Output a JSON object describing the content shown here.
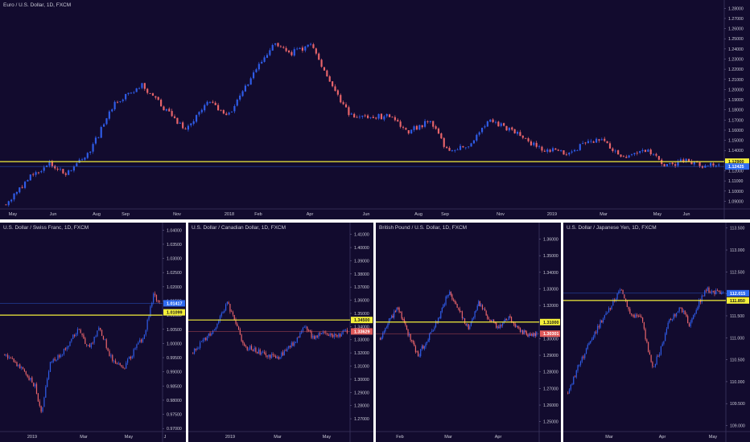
{
  "chart_data": [
    {
      "type": "candlestick",
      "title": "Euro / U.S. Dollar, 1D, FXCM",
      "xlabel": "",
      "ylabel": "",
      "ylim": [
        1.084,
        1.285
      ],
      "y_ticks": [
        "1.09000",
        "1.10000",
        "1.11000",
        "1.12000",
        "1.13000",
        "1.14000",
        "1.15000",
        "1.16000",
        "1.17000",
        "1.18000",
        "1.19000",
        "1.20000",
        "1.21000",
        "1.22000",
        "1.23000",
        "1.24000",
        "1.25000",
        "1.26000",
        "1.27000",
        "1.28000"
      ],
      "x_ticks": [
        "May",
        "Jun",
        "Aug",
        "Sep",
        "Nov",
        "2018",
        "Feb",
        "Apr",
        "Jun",
        "Aug",
        "Sep",
        "Nov",
        "2019",
        "Mar",
        "May",
        "Jun"
      ],
      "price_path": [
        [
          0,
          1.087
        ],
        [
          8,
          1.112
        ],
        [
          16,
          1.128
        ],
        [
          22,
          1.117
        ],
        [
          30,
          1.135
        ],
        [
          40,
          1.186
        ],
        [
          50,
          1.205
        ],
        [
          58,
          1.182
        ],
        [
          66,
          1.16
        ],
        [
          74,
          1.188
        ],
        [
          82,
          1.175
        ],
        [
          90,
          1.21
        ],
        [
          98,
          1.245
        ],
        [
          104,
          1.235
        ],
        [
          112,
          1.244
        ],
        [
          118,
          1.215
        ],
        [
          126,
          1.175
        ],
        [
          132,
          1.172
        ],
        [
          140,
          1.174
        ],
        [
          148,
          1.159
        ],
        [
          156,
          1.169
        ],
        [
          162,
          1.14
        ],
        [
          170,
          1.144
        ],
        [
          178,
          1.17
        ],
        [
          188,
          1.156
        ],
        [
          196,
          1.142
        ],
        [
          206,
          1.138
        ],
        [
          218,
          1.152
        ],
        [
          226,
          1.133
        ],
        [
          236,
          1.14
        ],
        [
          242,
          1.125
        ],
        [
          250,
          1.13
        ],
        [
          256,
          1.124
        ],
        [
          262,
          1.126
        ]
      ],
      "horizontal_line": 1.129,
      "price_labels": [
        "1.12900",
        "1.12425"
      ],
      "grid": false,
      "legend": "none"
    },
    {
      "type": "candlestick",
      "title": "U.S. Dollar / Swiss Franc, 1D, FXCM",
      "ylim": [
        0.9695,
        1.0415
      ],
      "y_ticks": [
        "0.97000",
        "0.97500",
        "0.98000",
        "0.98500",
        "0.99000",
        "0.99500",
        "1.00000",
        "1.00500",
        "1.01000",
        "1.01500",
        "1.02000",
        "1.02500",
        "1.03000",
        "1.03500",
        "1.04000"
      ],
      "x_ticks": [
        "2019",
        "Mar",
        "May",
        "J"
      ],
      "price_path": [
        [
          0,
          0.996
        ],
        [
          10,
          0.992
        ],
        [
          20,
          0.985
        ],
        [
          24,
          0.975
        ],
        [
          30,
          0.993
        ],
        [
          40,
          0.998
        ],
        [
          48,
          1.005
        ],
        [
          56,
          0.998
        ],
        [
          62,
          1.006
        ],
        [
          70,
          0.995
        ],
        [
          78,
          0.991
        ],
        [
          86,
          0.998
        ],
        [
          92,
          1.003
        ],
        [
          98,
          1.017
        ],
        [
          102,
          1.014
        ]
      ],
      "horizontal_line": 1.01,
      "price_labels": [
        "1.01417",
        "1.01099"
      ],
      "grid": false,
      "legend": "none"
    },
    {
      "type": "candlestick",
      "title": "U.S. Dollar / Canadian Dollar, 1D, FXCM",
      "ylim": [
        1.2615,
        1.4165
      ],
      "y_ticks": [
        "1.27000",
        "1.28000",
        "1.29000",
        "1.30000",
        "1.31000",
        "1.32000",
        "1.33000",
        "1.34000",
        "1.35000",
        "1.36000",
        "1.37000",
        "1.38000",
        "1.39000",
        "1.40000",
        "1.41000"
      ],
      "x_ticks": [
        "2019",
        "Mar",
        "May"
      ],
      "price_path": [
        [
          0,
          1.32
        ],
        [
          8,
          1.33
        ],
        [
          16,
          1.339
        ],
        [
          24,
          1.358
        ],
        [
          30,
          1.342
        ],
        [
          36,
          1.325
        ],
        [
          44,
          1.322
        ],
        [
          52,
          1.318
        ],
        [
          60,
          1.316
        ],
        [
          66,
          1.324
        ],
        [
          72,
          1.328
        ],
        [
          78,
          1.341
        ],
        [
          84,
          1.332
        ],
        [
          92,
          1.336
        ],
        [
          100,
          1.332
        ],
        [
          108,
          1.337
        ]
      ],
      "horizontal_line": 1.345,
      "price_labels": [
        "1.34500",
        "1.33629"
      ],
      "grid": false,
      "legend": "none"
    },
    {
      "type": "candlestick",
      "title": "British Pound / U.S. Dollar, 1D, FXCM",
      "ylim": [
        1.245,
        1.368
      ],
      "y_ticks": [
        "1.25000",
        "1.26000",
        "1.27000",
        "1.28000",
        "1.29000",
        "1.30000",
        "1.31000",
        "1.32000",
        "1.33000",
        "1.34000",
        "1.35000",
        "1.36000"
      ],
      "x_ticks": [
        "Feb",
        "Mar",
        "Apr"
      ],
      "price_path": [
        [
          0,
          1.3
        ],
        [
          6,
          1.31
        ],
        [
          14,
          1.318
        ],
        [
          22,
          1.303
        ],
        [
          30,
          1.29
        ],
        [
          38,
          1.301
        ],
        [
          46,
          1.312
        ],
        [
          54,
          1.328
        ],
        [
          62,
          1.318
        ],
        [
          70,
          1.306
        ],
        [
          78,
          1.322
        ],
        [
          86,
          1.312
        ],
        [
          94,
          1.306
        ],
        [
          102,
          1.313
        ],
        [
          110,
          1.305
        ],
        [
          118,
          1.302
        ],
        [
          124,
          1.303
        ]
      ],
      "horizontal_line": 1.31,
      "price_labels": [
        "1.31000",
        "1.30301"
      ],
      "grid": false,
      "legend": "none"
    },
    {
      "type": "candlestick",
      "title": "U.S. Dollar / Japanese Yen, 1D, FXCM",
      "ylim": [
        108.9,
        113.55
      ],
      "y_ticks": [
        "109.000",
        "109.500",
        "110.000",
        "110.500",
        "111.000",
        "111.500",
        "112.000",
        "112.500",
        "113.000",
        "113.500"
      ],
      "x_ticks": [
        "Mar",
        "Apr",
        "May"
      ],
      "price_path": [
        [
          0,
          109.75
        ],
        [
          8,
          110.4
        ],
        [
          16,
          110.95
        ],
        [
          24,
          111.4
        ],
        [
          30,
          111.7
        ],
        [
          38,
          112.15
        ],
        [
          44,
          111.55
        ],
        [
          52,
          111.45
        ],
        [
          60,
          110.3
        ],
        [
          66,
          110.75
        ],
        [
          72,
          111.4
        ],
        [
          80,
          111.7
        ],
        [
          86,
          111.3
        ],
        [
          92,
          111.75
        ],
        [
          98,
          112.1
        ],
        [
          104,
          112.05
        ],
        [
          110,
          112.0
        ]
      ],
      "horizontal_line": 111.85,
      "price_labels": [
        "112.015",
        "111.850"
      ],
      "grid": false,
      "legend": "none"
    }
  ],
  "colors": {
    "background": "#120b2e",
    "up_candle": "#2f5ce8",
    "down_candle": "#e8646a",
    "support_line": "#f4f03a",
    "price_label_up": "#2f6bf0",
    "price_label_down": "#e05a5a",
    "axis_text": "#c9c9d6",
    "separator": "#ffffff"
  }
}
